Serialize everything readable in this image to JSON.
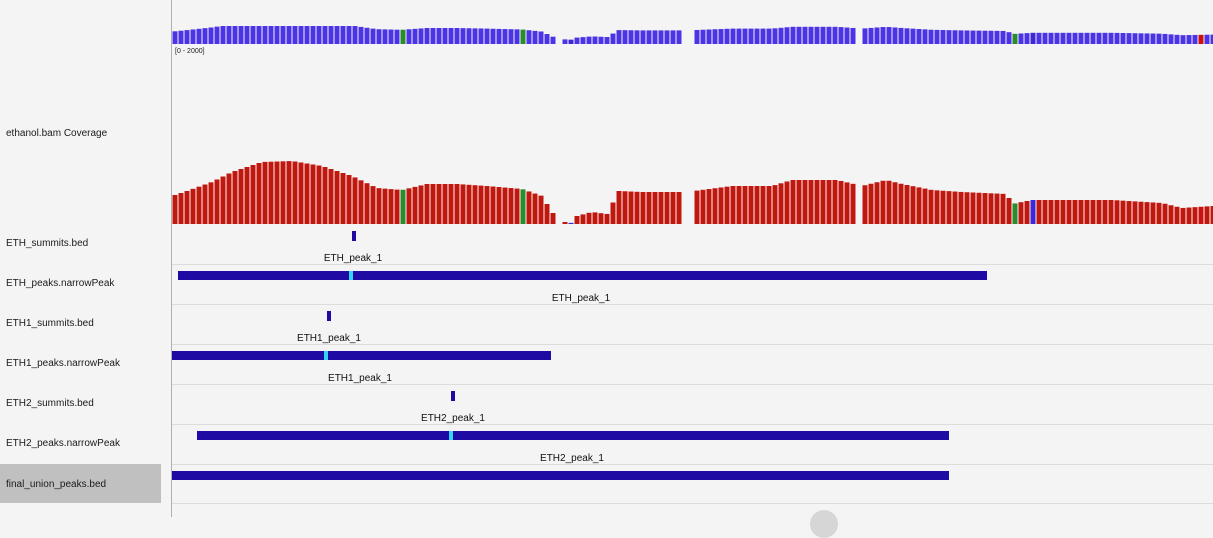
{
  "coverage_top": {
    "range_label": "[0 - 2000]"
  },
  "tracks": [
    {
      "id": "ethanol-bam-coverage",
      "name": "ethanol.bam Coverage",
      "selected": false
    },
    {
      "id": "eth-summits",
      "name": "ETH_summits.bed",
      "selected": false
    },
    {
      "id": "eth-peaks",
      "name": "ETH_peaks.narrowPeak",
      "selected": false
    },
    {
      "id": "eth1-summits",
      "name": "ETH1_summits.bed",
      "selected": false
    },
    {
      "id": "eth1-peaks",
      "name": "ETH1_peaks.narrowPeak",
      "selected": false
    },
    {
      "id": "eth2-summits",
      "name": "ETH2_summits.bed",
      "selected": false
    },
    {
      "id": "eth2-peaks",
      "name": "ETH2_peaks.narrowPeak",
      "selected": false
    },
    {
      "id": "final-union-peaks",
      "name": "final_union_peaks.bed",
      "selected": true
    }
  ],
  "features": {
    "eth_summit_label": "ETH_peak_1",
    "eth_peak_label": "ETH_peak_1",
    "eth1_summit_label": "ETH1_peak_1",
    "eth1_peak_label": "ETH1_peak_1",
    "eth2_summit_label": "ETH2_peak_1",
    "eth2_peak_label": "ETH2_peak_1"
  },
  "colors": {
    "coverage_top": "#4b33e6",
    "coverage_main": "#c0180f",
    "mismatch_green": "#2a8c2a",
    "mismatch_blue": "#3b28d6",
    "mismatch_red": "#d01010",
    "feature": "#1f0aa3",
    "summit_mark": "#33d4f0",
    "divider": "#dcdcdc"
  }
}
